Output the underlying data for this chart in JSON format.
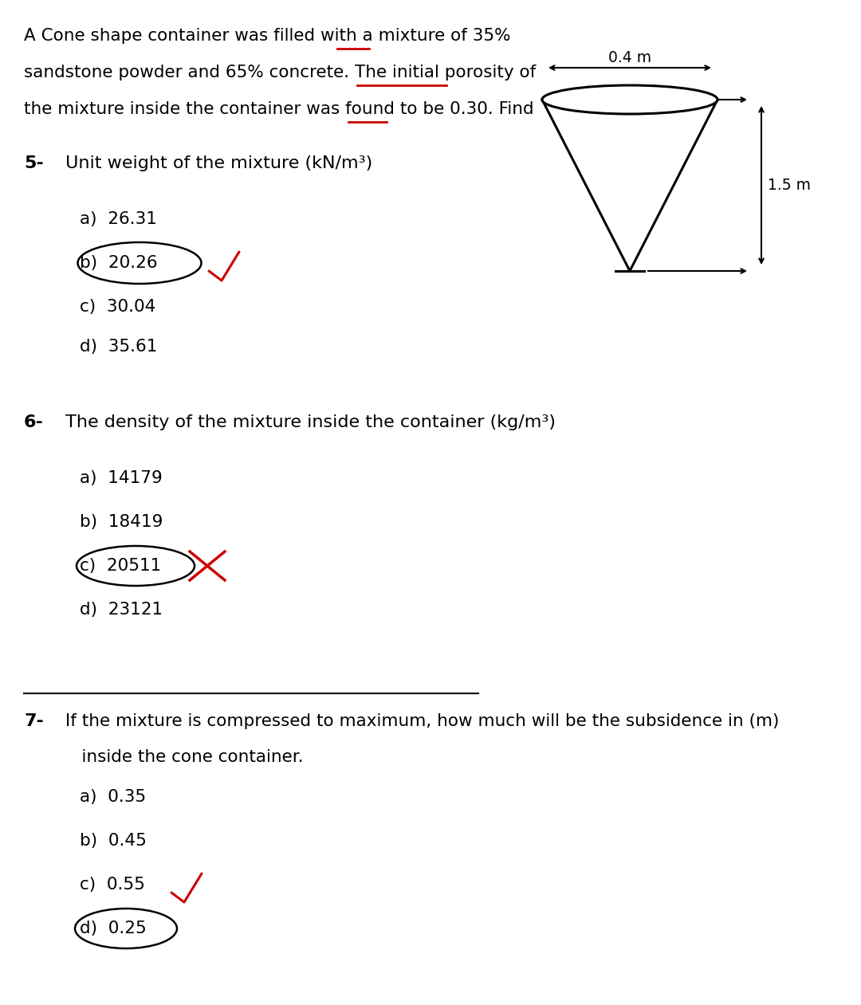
{
  "bg_color": "#ffffff",
  "text_color": "#000000",
  "red_color": "#cc0000",
  "para_line1": "A Cone shape container was filled with a mixture of 35%",
  "para_line2": "sandstone powder and 65% concrete. The initial porosity of",
  "para_line3": "the mixture inside the container was found to be 0.30. Find",
  "q5_label": "5-",
  "q5_text": " Unit weight of the mixture (kN/m³)",
  "q5_options": [
    "a)  26.31",
    "b)  20.26",
    "c)  30.04",
    "d)  35.61"
  ],
  "q6_label": "6-",
  "q6_text": " The density of the mixture inside the container (kg/m³)",
  "q6_options": [
    "a)  14179",
    "b)  18419",
    "c)  20511",
    "d)  23121"
  ],
  "q7_label": "7-",
  "q7_line1": " If the mixture is compressed to maximum, how much will be the subsidence in (m)",
  "q7_line2": "    inside the cone container.",
  "q7_options": [
    "a)  0.35",
    "b)  0.45",
    "c)  0.55",
    "d)  0.25"
  ],
  "cone_top_label": "0.4 m",
  "cone_side_label": "1.5 m",
  "font_size_para": 15.5,
  "font_size_q": 16.0,
  "font_size_opt": 15.5,
  "font_size_cone": 13.5
}
